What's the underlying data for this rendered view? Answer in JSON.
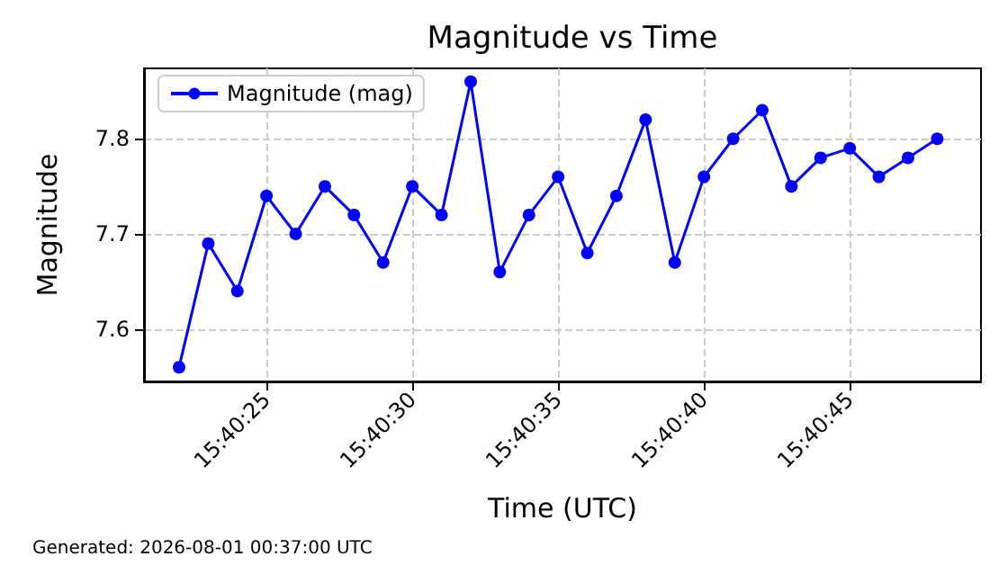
{
  "chart_data": {
    "type": "line",
    "title": "Magnitude vs Time",
    "xlabel": "Time (UTC)",
    "ylabel": "Magnitude",
    "x": [
      15.672778,
      15.673056,
      15.673333,
      15.673611,
      15.673889,
      15.674167,
      15.674444,
      15.674722,
      15.675,
      15.675278,
      15.675556,
      15.675833,
      15.676111,
      15.676389,
      15.676667,
      15.676944,
      15.677222,
      15.6775,
      15.677778,
      15.678056,
      15.678333,
      15.678611,
      15.678889,
      15.679167,
      15.679444,
      15.679722,
      15.68
    ],
    "series": [
      {
        "name": "Magnitude (mag)",
        "color": "#0000ff",
        "values": [
          7.56,
          7.69,
          7.64,
          7.74,
          7.7,
          7.75,
          7.72,
          7.67,
          7.75,
          7.72,
          7.86,
          7.66,
          7.72,
          7.76,
          7.68,
          7.74,
          7.82,
          7.67,
          7.76,
          7.8,
          7.83,
          7.75,
          7.78,
          7.79,
          7.76,
          7.78,
          7.8
        ]
      }
    ],
    "xlim": [
      15.672444,
      15.680417
    ],
    "xticks": [
      {
        "value": 15.673611,
        "label": "15:40:25"
      },
      {
        "value": 15.675,
        "label": "15:40:30"
      },
      {
        "value": 15.676389,
        "label": "15:40:35"
      },
      {
        "value": 15.677778,
        "label": "15:40:40"
      },
      {
        "value": 15.679167,
        "label": "15:40:45"
      }
    ],
    "ylim": [
      7.545,
      7.874
    ],
    "yticks": [
      7.6,
      7.7,
      7.8
    ],
    "grid": true,
    "legend": "top left",
    "marker": "circle",
    "line_style": "solid",
    "annotations": [
      "Generated: 2026-08-01 00:37:00 UTC"
    ]
  }
}
